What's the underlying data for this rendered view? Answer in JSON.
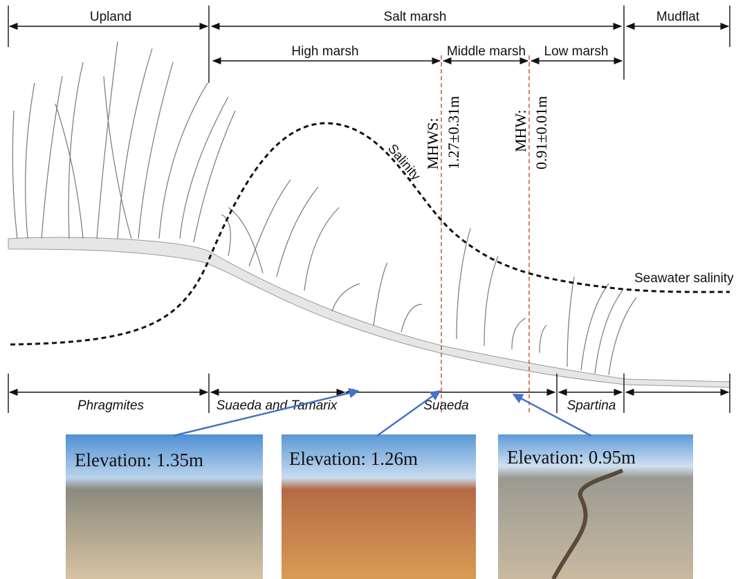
{
  "zones": [
    {
      "label": "Upland"
    },
    {
      "label": "Salt marsh"
    },
    {
      "label": "Mudflat"
    }
  ],
  "subzones": [
    {
      "label": "High marsh"
    },
    {
      "label": "Middle marsh"
    },
    {
      "label": "Low marsh"
    }
  ],
  "tide_lines": [
    {
      "label": "MHWS:",
      "value": "1.27±0.31m"
    },
    {
      "label": "MHW:",
      "value": "0.91±0.01m"
    }
  ],
  "curves": {
    "salinity": "Salinity",
    "seawater": "Seawater salinity"
  },
  "vegetation": [
    {
      "label": "Phragmites"
    },
    {
      "label": "Suaeda and Tamarix"
    },
    {
      "label": "Suaeda"
    },
    {
      "label": "Spartina"
    }
  ],
  "photos": [
    {
      "label": "Elevation: 1.35m"
    },
    {
      "label": "Elevation: 1.26m"
    },
    {
      "label": "Elevation: 0.95m"
    }
  ]
}
